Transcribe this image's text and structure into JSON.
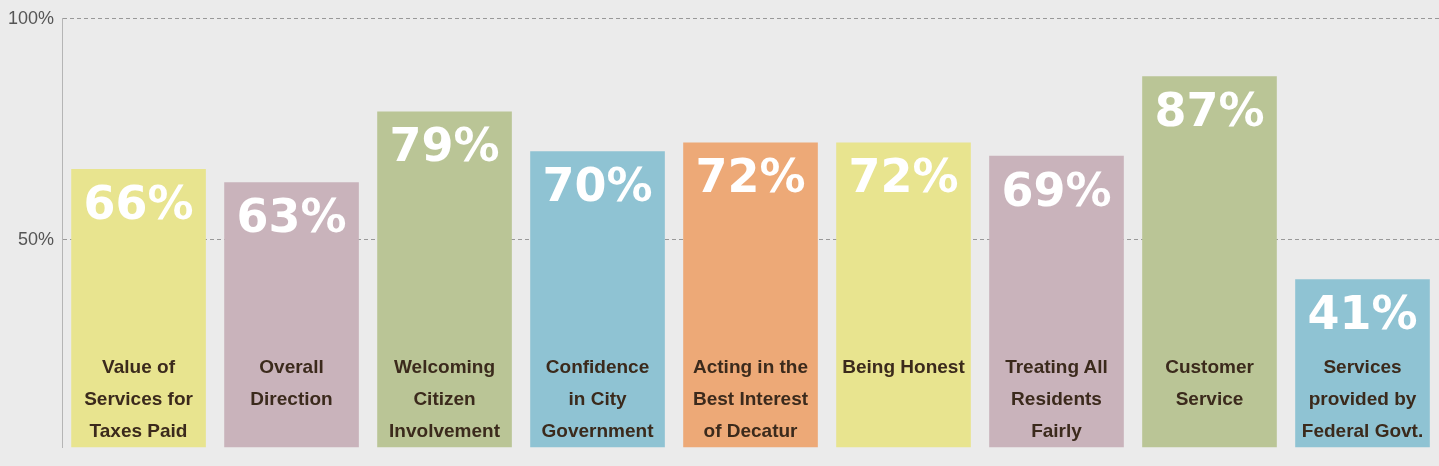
{
  "chart_data": {
    "type": "bar",
    "categories": [
      "Value of Services for Taxes Paid",
      "Overall Direction",
      "Welcoming Citizen Involvement",
      "Confidence in City Government",
      "Acting in the Best Interest of Decatur",
      "Being Honest",
      "Treating All Residents Fairly",
      "Customer Service",
      "Services provided by Federal Govt."
    ],
    "values": [
      66,
      63,
      79,
      70,
      72,
      72,
      69,
      87,
      41
    ],
    "value_labels": [
      "66%",
      "63%",
      "79%",
      "70%",
      "72%",
      "72%",
      "69%",
      "87%",
      "41%"
    ],
    "colors": [
      "#e8e48f",
      "#c9b3bb",
      "#bac596",
      "#8fc3d3",
      "#eda977",
      "#e8e48f",
      "#c9b3bb",
      "#bac596",
      "#8fc3d3"
    ],
    "ylim": [
      3,
      100
    ],
    "yticks": [
      {
        "value": 50,
        "label": "50%"
      },
      {
        "value": 100,
        "label": "100%"
      }
    ],
    "grid": "y",
    "line_style": "dashed",
    "legend": false
  }
}
